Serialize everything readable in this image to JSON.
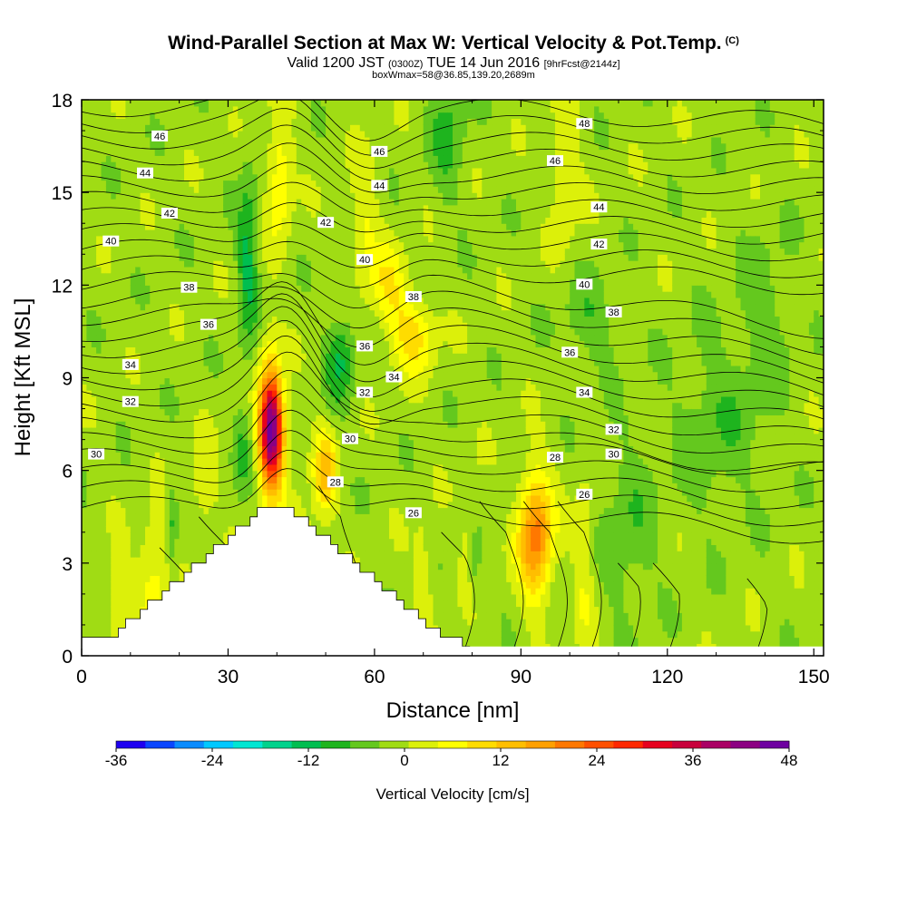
{
  "title": {
    "main": "Wind-Parallel Section at Max W: Vertical Velocity & Pot.Temp.",
    "copyright": "(C)",
    "line2_a": "Valid 1200 JST",
    "line2_small1": "(0300Z)",
    "line2_b": "TUE 14 Jun 2016",
    "line2_small2": "[9hrFcst@2144z]",
    "line3": "boxWmax=58@36.85,139.20,2689m"
  },
  "chart_data": {
    "type": "heatmap",
    "xlabel": "Distance [nm]",
    "ylabel": "Height [Kft MSL]",
    "xlim": [
      0,
      152
    ],
    "ylim": [
      0,
      18
    ],
    "x_ticks": [
      "0",
      "30",
      "60",
      "90",
      "120",
      "150"
    ],
    "y_ticks": [
      "0",
      "3",
      "6",
      "9",
      "12",
      "15",
      "18"
    ],
    "colorbar": {
      "label": "Vertical Velocity [cm/s]",
      "ticks": [
        "-36",
        "-24",
        "-12",
        "0",
        "12",
        "24",
        "36",
        "48"
      ],
      "colors": [
        "#1e00f0",
        "#0a46ff",
        "#0a8cff",
        "#00c8ff",
        "#00e6d2",
        "#00d28c",
        "#00be50",
        "#1eb41e",
        "#64c81e",
        "#a0dc14",
        "#dcf00a",
        "#ffff00",
        "#ffdc00",
        "#ffbe00",
        "#ffa000",
        "#ff7800",
        "#ff5000",
        "#ff2800",
        "#e6001e",
        "#c8003c",
        "#aa0064",
        "#8c0082",
        "#6e00a0"
      ]
    },
    "terrain": {
      "peak_x": 40,
      "peak_height": 4.9,
      "base_x_range": [
        0,
        78
      ]
    },
    "updraft_cores": [
      {
        "x": 39,
        "height": 7.2,
        "max_cms": 48
      },
      {
        "x": 93,
        "height": 3.9,
        "max_cms": 26
      },
      {
        "x": 50,
        "height": 6.0,
        "max_cms": 18
      }
    ],
    "theta_contour_labels": [
      {
        "text": "46",
        "x": 16,
        "h": 16.8
      },
      {
        "text": "44",
        "x": 13,
        "h": 15.6
      },
      {
        "text": "42",
        "x": 18,
        "h": 14.3
      },
      {
        "text": "40",
        "x": 6,
        "h": 13.4
      },
      {
        "text": "38",
        "x": 22,
        "h": 11.9
      },
      {
        "text": "36",
        "x": 26,
        "h": 10.7
      },
      {
        "text": "34",
        "x": 10,
        "h": 9.4
      },
      {
        "text": "32",
        "x": 10,
        "h": 8.2
      },
      {
        "text": "30",
        "x": 3,
        "h": 6.5
      },
      {
        "text": "46",
        "x": 61,
        "h": 16.3
      },
      {
        "text": "44",
        "x": 61,
        "h": 15.2
      },
      {
        "text": "42",
        "x": 50,
        "h": 14.0
      },
      {
        "text": "40",
        "x": 58,
        "h": 12.8
      },
      {
        "text": "38",
        "x": 68,
        "h": 11.6
      },
      {
        "text": "36",
        "x": 58,
        "h": 10.0
      },
      {
        "text": "34",
        "x": 64,
        "h": 9.0
      },
      {
        "text": "32",
        "x": 58,
        "h": 8.5
      },
      {
        "text": "30",
        "x": 55,
        "h": 7.0
      },
      {
        "text": "28",
        "x": 52,
        "h": 5.6
      },
      {
        "text": "26",
        "x": 68,
        "h": 4.6
      },
      {
        "text": "48",
        "x": 103,
        "h": 17.2
      },
      {
        "text": "46",
        "x": 97,
        "h": 16.0
      },
      {
        "text": "44",
        "x": 106,
        "h": 14.5
      },
      {
        "text": "42",
        "x": 106,
        "h": 13.3
      },
      {
        "text": "40",
        "x": 103,
        "h": 12.0
      },
      {
        "text": "38",
        "x": 109,
        "h": 11.1
      },
      {
        "text": "36",
        "x": 100,
        "h": 9.8
      },
      {
        "text": "34",
        "x": 103,
        "h": 8.5
      },
      {
        "text": "32",
        "x": 109,
        "h": 7.3
      },
      {
        "text": "30",
        "x": 109,
        "h": 6.5
      },
      {
        "text": "28",
        "x": 97,
        "h": 6.4
      },
      {
        "text": "26",
        "x": 103,
        "h": 5.2
      }
    ]
  }
}
